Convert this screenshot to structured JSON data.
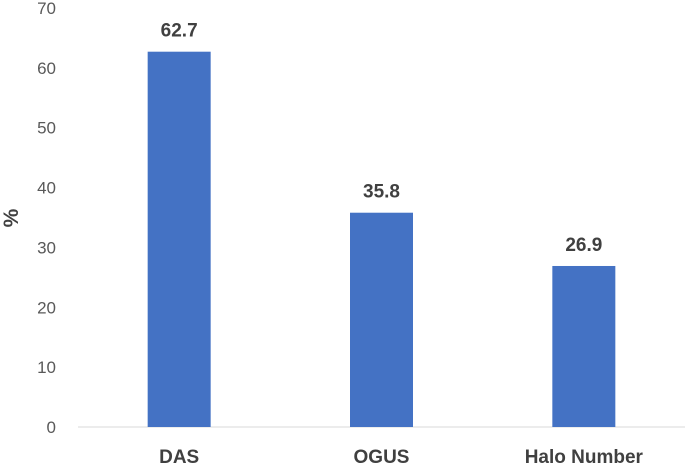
{
  "chart_data": {
    "type": "bar",
    "categories": [
      "DAS",
      "OGUS",
      "Halo Number"
    ],
    "values": [
      62.7,
      35.8,
      26.9
    ],
    "data_labels": [
      "62.7",
      "35.8",
      "26.9"
    ],
    "title": "",
    "xlabel": "",
    "ylabel": "%",
    "ylim": [
      0,
      70
    ],
    "yticks": [
      0,
      10,
      20,
      30,
      40,
      50,
      60,
      70
    ],
    "grid": false,
    "bar_color": "#4472C4",
    "axis_color": "#D9D9D9"
  }
}
